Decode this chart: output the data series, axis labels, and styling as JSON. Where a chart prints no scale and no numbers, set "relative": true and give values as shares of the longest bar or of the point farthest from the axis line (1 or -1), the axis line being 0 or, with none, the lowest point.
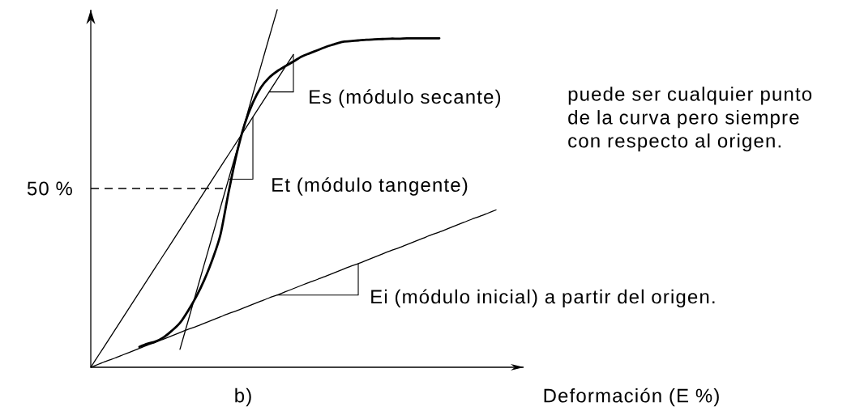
{
  "chart_data": {
    "type": "line",
    "relative": true,
    "xlabel": "Deformación (E %)",
    "categories": [
      null,
      null,
      null,
      null,
      null,
      null,
      null,
      null,
      null,
      null,
      null,
      null,
      null,
      null,
      null,
      null,
      null,
      null,
      null,
      null,
      null,
      null,
      null,
      null,
      null,
      null,
      null,
      null,
      null,
      null,
      null,
      null,
      null,
      null,
      null,
      null,
      null,
      null,
      null,
      null,
      null,
      null,
      null,
      null,
      null,
      null,
      null,
      null,
      null,
      null,
      null
    ],
    "series": [
      {
        "color": "#000000",
        "values": [
          null,
          null,
          null,
          null,
          null,
          null,
          0.057,
          0.066,
          0.072,
          0.084,
          0.102,
          0.124,
          0.158,
          0.197,
          0.244,
          0.301,
          0.371,
          0.489,
          0.597,
          0.681,
          0.74,
          0.783,
          0.81,
          0.828,
          0.842,
          0.855,
          0.869,
          0.878,
          0.887,
          0.896,
          0.903,
          0.91,
          0.912,
          0.914,
          0.916,
          0.917,
          0.918,
          0.919,
          0.919,
          0.92,
          0.92,
          0.92,
          0.92,
          0.92,
          null,
          null,
          null,
          null,
          null,
          null,
          null
        ]
      },
      {
        "color": "#000000",
        "values": [
          null,
          null,
          null,
          null,
          null,
          null,
          null,
          null,
          null,
          null,
          null,
          0.05,
          0.129,
          0.209,
          0.288,
          0.367,
          0.447,
          0.526,
          0.605,
          0.684,
          0.764,
          0.843,
          0.922,
          1.0,
          null,
          null,
          null,
          null,
          null,
          null,
          null,
          null,
          null,
          null,
          null,
          null,
          null,
          null,
          null,
          null,
          null,
          null,
          null,
          null,
          null,
          null,
          null,
          null,
          null,
          null,
          null
        ]
      },
      {
        "color": "#000000",
        "values": [
          0,
          0.035,
          0.07,
          0.105,
          0.14,
          0.175,
          0.21,
          0.245,
          0.28,
          0.315,
          0.35,
          0.385,
          0.42,
          0.455,
          0.49,
          0.525,
          0.56,
          0.595,
          0.63,
          0.665,
          0.7,
          0.735,
          0.77,
          0.805,
          0.84,
          0.875,
          null,
          null,
          null,
          null,
          null,
          null,
          null,
          null,
          null,
          null,
          null,
          null,
          null,
          null,
          null,
          null,
          null,
          null,
          null,
          null,
          null,
          null,
          null,
          null,
          null
        ]
      },
      {
        "color": "#000000",
        "values": [
          0,
          0.009,
          0.018,
          0.026,
          0.035,
          0.044,
          0.053,
          0.062,
          0.07,
          0.079,
          0.088,
          0.097,
          0.106,
          0.114,
          0.123,
          0.132,
          0.141,
          0.15,
          0.158,
          0.167,
          0.176,
          0.185,
          0.194,
          0.202,
          0.211,
          0.22,
          0.229,
          0.238,
          0.246,
          0.255,
          0.264,
          0.273,
          0.282,
          0.29,
          0.299,
          0.308,
          0.317,
          0.326,
          0.334,
          0.343,
          0.352,
          0.361,
          0.37,
          0.378,
          0.387,
          0.396,
          0.405,
          0.414,
          0.422,
          0.431,
          0.44
        ]
      }
    ],
    "ref_lines": [
      {
        "axis": "y",
        "value": 0.5,
        "label": "50 %",
        "line_style": "dashed",
        "color": "#000000"
      }
    ],
    "annotations": [
      "Es (módulo secante)",
      "puede ser cualquier punto de la curva pero siempre con respecto al origen.",
      "Et (módulo tangente)",
      "Ei (módulo inicial)  a partir del origen.",
      "b)"
    ]
  }
}
